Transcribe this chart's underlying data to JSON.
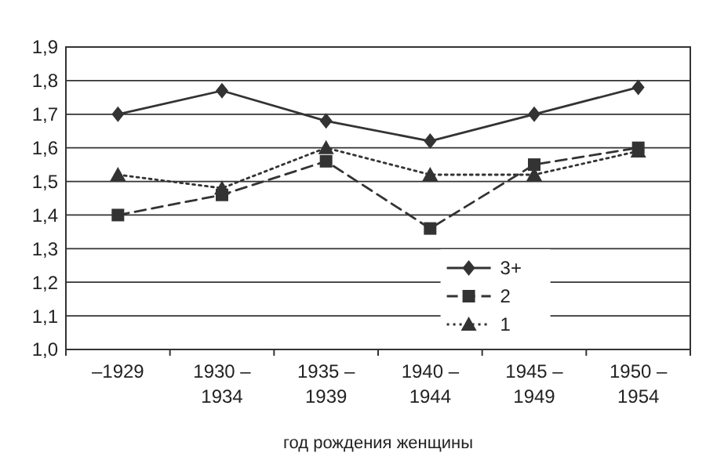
{
  "chart_data": {
    "type": "line",
    "xlabel": "год рождения женщины",
    "categories": [
      "–1929",
      "1930 –\n1934",
      "1935 –\n1939",
      "1940 –\n1944",
      "1945 –\n1949",
      "1950 –\n1954"
    ],
    "ylim": [
      1.0,
      1.9
    ],
    "yticks": [
      {
        "value": 1.0,
        "label": "1,0"
      },
      {
        "value": 1.1,
        "label": "1,1"
      },
      {
        "value": 1.2,
        "label": "1,2"
      },
      {
        "value": 1.3,
        "label": "1,3"
      },
      {
        "value": 1.4,
        "label": "1,4"
      },
      {
        "value": 1.5,
        "label": "1,5"
      },
      {
        "value": 1.6,
        "label": "1,6"
      },
      {
        "value": 1.7,
        "label": "1,7"
      },
      {
        "value": 1.8,
        "label": "1,8"
      },
      {
        "value": 1.9,
        "label": "1,9"
      }
    ],
    "grid": "y",
    "legend": "bottom right",
    "series": [
      {
        "name": "3+",
        "color": "#333333",
        "marker": "diamond",
        "line_style": "solid",
        "values": [
          1.7,
          1.77,
          1.68,
          1.62,
          1.7,
          1.78
        ]
      },
      {
        "name": "2",
        "color": "#333333",
        "marker": "square",
        "line_style": "dashed",
        "values": [
          1.4,
          1.46,
          1.56,
          1.36,
          1.55,
          1.6
        ]
      },
      {
        "name": "1",
        "color": "#333333",
        "marker": "triangle",
        "line_style": "dotted",
        "values": [
          1.52,
          1.48,
          1.6,
          1.52,
          1.52,
          1.59
        ]
      }
    ]
  }
}
